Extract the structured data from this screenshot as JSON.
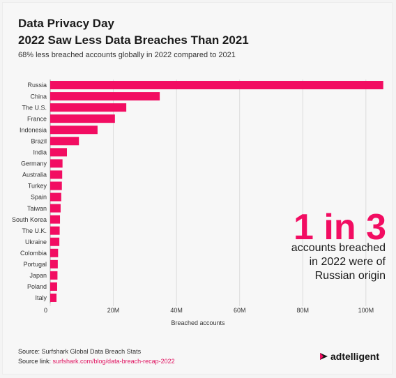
{
  "header": {
    "title_line1": "Data Privacy Day",
    "title_line2": "2022 Saw Less Data Breaches Than 2021",
    "subtitle": "68% less breached accounts globally in 2022 compared to 2021"
  },
  "callout": {
    "big": "1 in 3",
    "line1": "accounts breached",
    "line2": "in 2022 were of",
    "line3": "Russian origin"
  },
  "footer": {
    "source_label": "Source: ",
    "source_value": "Surfshark Global Data Breach Stats",
    "link_label": "Source link: ",
    "link_value": "surfshark.com/blog/data-breach-recap-2022",
    "logo_text": "adtelligent"
  },
  "colors": {
    "bar": "#f20d62",
    "accent": "#f20d62",
    "grid": "#dcdcdc"
  },
  "chart_data": {
    "type": "bar",
    "orientation": "horizontal",
    "categories": [
      "Russia",
      "China",
      "The U.S.",
      "France",
      "Indonesia",
      "Brazil",
      "India",
      "Germany",
      "Australia",
      "Turkey",
      "Spain",
      "Taiwan",
      "South Korea",
      "The U.K.",
      "Ukraine",
      "Colombia",
      "Portugal",
      "Japan",
      "Poland",
      "Italy"
    ],
    "values": [
      105500000,
      34700000,
      24100000,
      20500000,
      15000000,
      9100000,
      5300000,
      3900000,
      3800000,
      3700000,
      3500000,
      3300000,
      3100000,
      3000000,
      2900000,
      2500000,
      2400000,
      2300000,
      2200000,
      2000000
    ],
    "xlabel": "Breached accounts",
    "ylabel": "",
    "xlim": [
      0,
      106000000
    ],
    "xticks": [
      0,
      20000000,
      40000000,
      60000000,
      80000000,
      100000000
    ],
    "xtick_labels": [
      "0",
      "20M",
      "40M",
      "60M",
      "80M",
      "100M"
    ],
    "grid": true
  }
}
